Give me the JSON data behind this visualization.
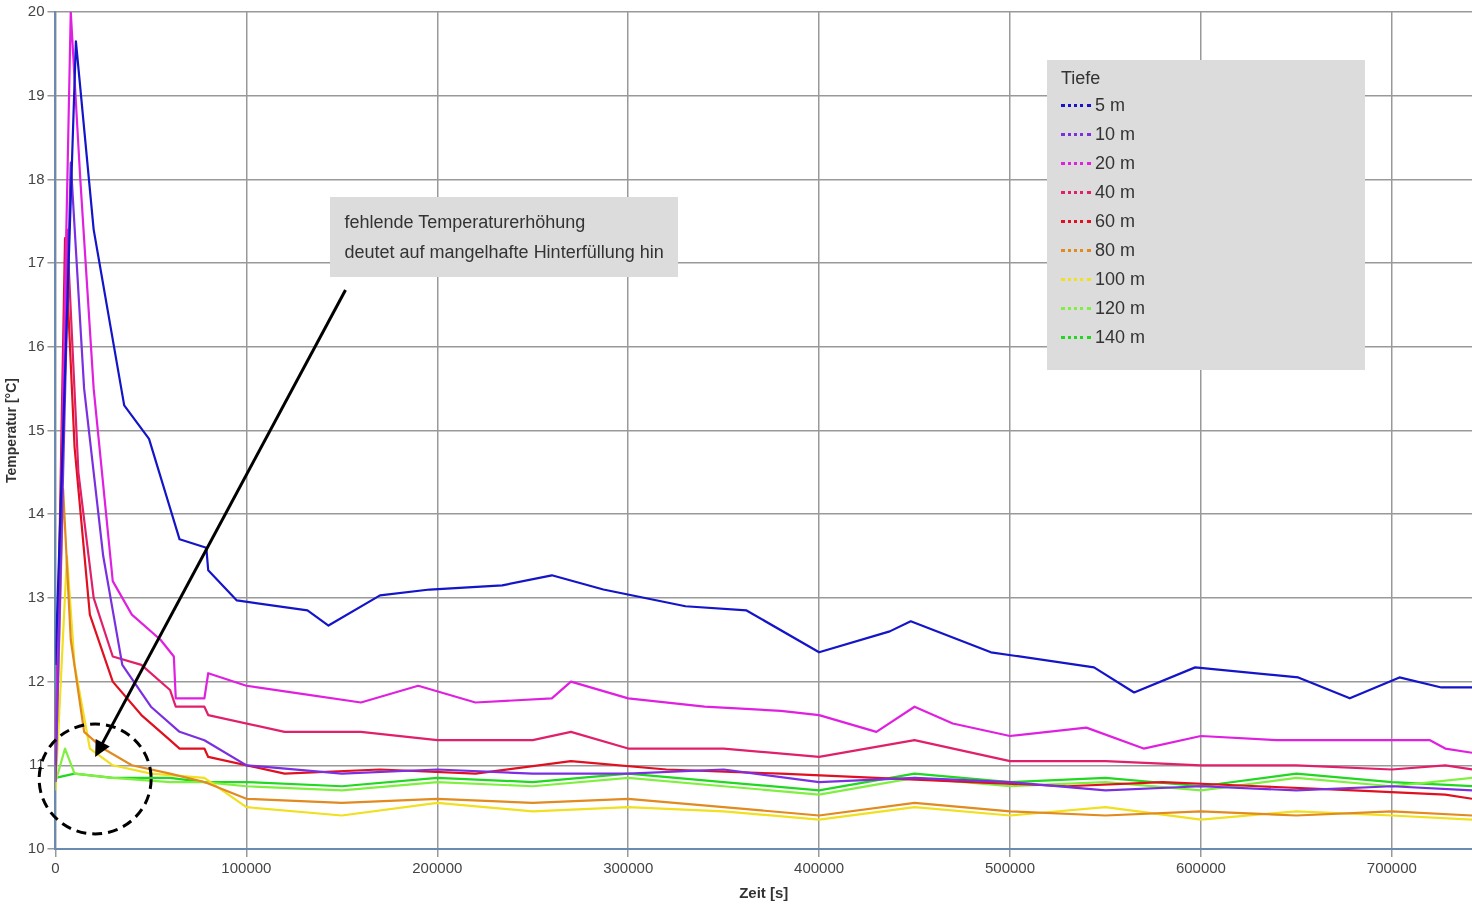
{
  "chart_data": {
    "type": "line",
    "xlabel": "Zeit [s]",
    "ylabel": "Temperatur [°C]",
    "legend_title": "Tiefe",
    "legend": "top right",
    "grid": true,
    "marker": "none",
    "xlim": [
      0,
      742000
    ],
    "xticks": [
      0,
      100000,
      200000,
      300000,
      400000,
      500000,
      600000,
      700000
    ],
    "ylim": [
      10,
      20
    ],
    "yticks": [
      10,
      11,
      12,
      13,
      14,
      15,
      16,
      17,
      18,
      19,
      20
    ],
    "annotations": [
      "fehlende Temperaturerhöhung\ndeutet auf mangelhafte Hinterfüllung hin"
    ],
    "series": [
      {
        "name": "5 m",
        "color": "#1414c8",
        "x": [
          0,
          10700,
          20000,
          36000,
          49000,
          65000,
          79000,
          80000,
          95000,
          132000,
          143000,
          170000,
          196000,
          234000,
          260000,
          287000,
          330000,
          362000,
          400000,
          437000,
          448000,
          490000,
          544000,
          565000,
          597000,
          651000,
          678000,
          704000,
          726000,
          742000
        ],
        "values": [
          12.2,
          19.65,
          17.4,
          15.3,
          14.9,
          13.7,
          13.6,
          13.33,
          12.97,
          12.85,
          12.67,
          13.03,
          13.1,
          13.15,
          13.27,
          13.1,
          12.9,
          12.85,
          12.35,
          12.6,
          12.72,
          12.35,
          12.17,
          11.87,
          12.17,
          12.05,
          11.8,
          12.05,
          11.93,
          11.93
        ]
      },
      {
        "name": "10 m",
        "color": "#7a30e0",
        "x": [
          0,
          8000,
          15000,
          25000,
          35000,
          50000,
          65000,
          78000,
          100000,
          150000,
          200000,
          250000,
          300000,
          350000,
          400000,
          450000,
          500000,
          550000,
          600000,
          650000,
          700000,
          742000
        ],
        "values": [
          10.8,
          18.2,
          15.5,
          13.5,
          12.2,
          11.7,
          11.4,
          11.3,
          11.0,
          10.9,
          10.95,
          10.9,
          10.9,
          10.95,
          10.8,
          10.85,
          10.8,
          10.7,
          10.75,
          10.7,
          10.75,
          10.7
        ]
      },
      {
        "name": "20 m",
        "color": "#e020e0",
        "x": [
          0,
          8000,
          13000,
          20000,
          30000,
          40000,
          55000,
          62000,
          63000,
          78000,
          80000,
          100000,
          130000,
          160000,
          190000,
          220000,
          260000,
          270000,
          300000,
          340000,
          380000,
          400000,
          430000,
          450000,
          470000,
          500000,
          540000,
          570000,
          600000,
          640000,
          680000,
          720000,
          728000,
          742000
        ],
        "values": [
          11.0,
          20.0,
          18.0,
          15.5,
          13.2,
          12.8,
          12.5,
          12.3,
          11.8,
          11.8,
          12.1,
          11.95,
          11.85,
          11.75,
          11.95,
          11.75,
          11.8,
          12.0,
          11.8,
          11.7,
          11.65,
          11.6,
          11.4,
          11.7,
          11.5,
          11.35,
          11.45,
          11.2,
          11.35,
          11.3,
          11.3,
          11.3,
          11.2,
          11.15
        ]
      },
      {
        "name": "40 m",
        "color": "#e0206a",
        "x": [
          0,
          6000,
          12000,
          20000,
          30000,
          45000,
          60000,
          63000,
          78000,
          80000,
          120000,
          160000,
          200000,
          250000,
          270000,
          300000,
          350000,
          400000,
          450000,
          500000,
          550000,
          600000,
          650000,
          700000,
          728000,
          742000
        ],
        "values": [
          11.0,
          17.4,
          14.5,
          13.0,
          12.3,
          12.2,
          11.9,
          11.7,
          11.7,
          11.6,
          11.4,
          11.4,
          11.3,
          11.3,
          11.4,
          11.2,
          11.2,
          11.1,
          11.3,
          11.05,
          11.05,
          11.0,
          11.0,
          10.95,
          11.0,
          10.95
        ]
      },
      {
        "name": "60 m",
        "color": "#e01020",
        "x": [
          0,
          5000,
          10000,
          18000,
          30000,
          45000,
          60000,
          65000,
          78000,
          80000,
          120000,
          170000,
          220000,
          270000,
          320000,
          380000,
          430000,
          480000,
          530000,
          580000,
          630000,
          680000,
          728000,
          742000
        ],
        "values": [
          11.0,
          17.3,
          14.8,
          12.8,
          12.0,
          11.6,
          11.3,
          11.2,
          11.2,
          11.1,
          10.9,
          10.95,
          10.9,
          11.05,
          10.95,
          10.9,
          10.85,
          10.8,
          10.75,
          10.8,
          10.75,
          10.7,
          10.65,
          10.6
        ]
      },
      {
        "name": "80 m",
        "color": "#e08a20",
        "x": [
          0,
          4000,
          8000,
          15000,
          25000,
          40000,
          60000,
          78000,
          100000,
          150000,
          200000,
          250000,
          300000,
          350000,
          400000,
          450000,
          500000,
          550000,
          600000,
          650000,
          700000,
          742000
        ],
        "values": [
          10.8,
          14.3,
          12.5,
          11.4,
          11.2,
          11.0,
          10.9,
          10.8,
          10.6,
          10.55,
          10.6,
          10.55,
          10.6,
          10.5,
          10.4,
          10.55,
          10.45,
          10.4,
          10.45,
          10.4,
          10.45,
          10.4
        ]
      },
      {
        "name": "100 m",
        "color": "#f0e020",
        "x": [
          0,
          6000,
          10000,
          18000,
          30000,
          50000,
          78000,
          100000,
          150000,
          200000,
          250000,
          300000,
          350000,
          400000,
          450000,
          500000,
          550000,
          600000,
          650000,
          700000,
          742000
        ],
        "values": [
          10.7,
          13.5,
          12.2,
          11.2,
          11.0,
          10.9,
          10.85,
          10.5,
          10.4,
          10.55,
          10.45,
          10.5,
          10.45,
          10.35,
          10.5,
          10.4,
          10.5,
          10.35,
          10.45,
          10.4,
          10.35
        ]
      },
      {
        "name": "120 m",
        "color": "#80f040",
        "x": [
          0,
          5000,
          10000,
          30000,
          60000,
          78000,
          100000,
          150000,
          200000,
          250000,
          300000,
          350000,
          400000,
          450000,
          500000,
          550000,
          600000,
          650000,
          700000,
          742000
        ],
        "values": [
          10.8,
          11.2,
          10.9,
          10.85,
          10.8,
          10.8,
          10.75,
          10.7,
          10.8,
          10.75,
          10.85,
          10.75,
          10.65,
          10.85,
          10.75,
          10.8,
          10.7,
          10.85,
          10.75,
          10.85
        ]
      },
      {
        "name": "140 m",
        "color": "#20d820",
        "x": [
          0,
          10000,
          30000,
          60000,
          78000,
          100000,
          150000,
          200000,
          250000,
          300000,
          350000,
          400000,
          450000,
          500000,
          550000,
          600000,
          650000,
          700000,
          742000
        ],
        "values": [
          10.85,
          10.9,
          10.85,
          10.85,
          10.8,
          10.8,
          10.75,
          10.85,
          10.8,
          10.9,
          10.8,
          10.7,
          10.9,
          10.8,
          10.85,
          10.75,
          10.9,
          10.8,
          10.75
        ]
      }
    ]
  }
}
